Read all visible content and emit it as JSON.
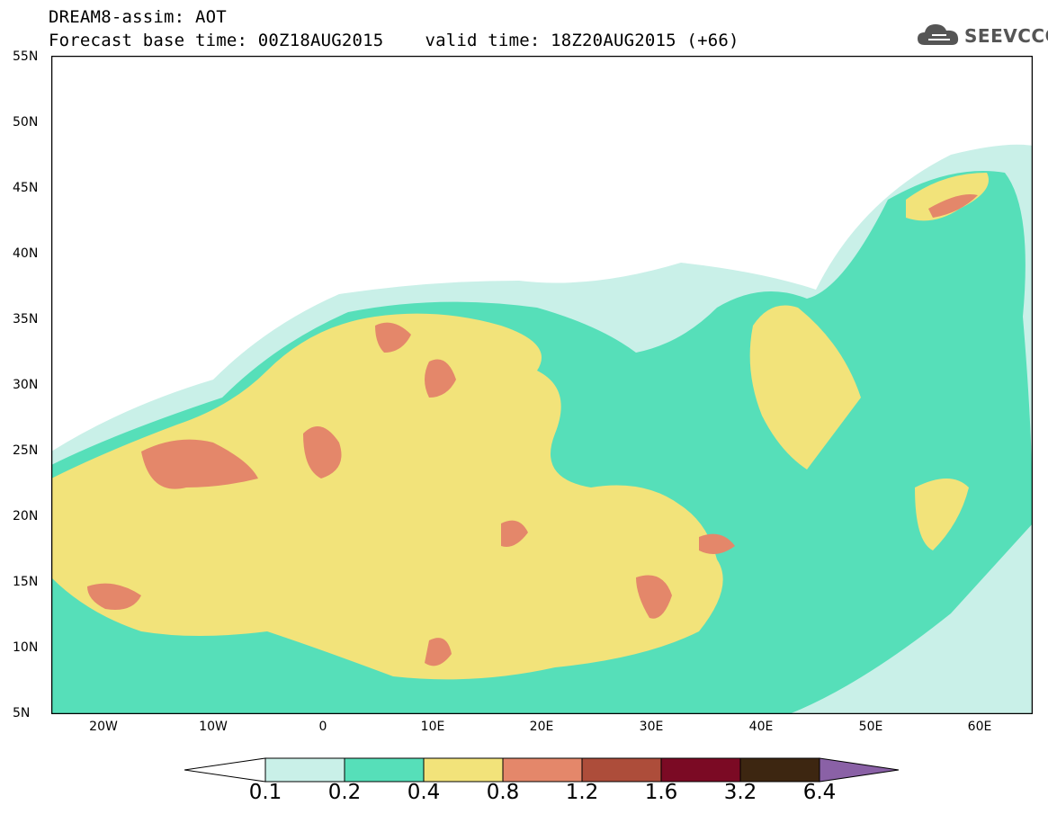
{
  "header": {
    "line1": "DREAM8-assim: AOT",
    "line2_base": "Forecast base time: 00Z18AUG2015",
    "line2_valid": "valid time: 18Z20AUG2015 (+66)",
    "logo_text": "SEEVCCC",
    "logo_icon": "cloud-logo-icon"
  },
  "map": {
    "latitudes": [
      "55N",
      "50N",
      "45N",
      "40N",
      "35N",
      "30N",
      "25N",
      "20N",
      "15N",
      "10N",
      "5N"
    ],
    "longitudes": [
      "20W",
      "10W",
      "0",
      "10E",
      "20E",
      "30E",
      "40E",
      "50E",
      "60E"
    ]
  },
  "colorbar": {
    "levels": [
      "0.1",
      "0.2",
      "0.4",
      "0.8",
      "1.2",
      "1.6",
      "3.2",
      "6.4"
    ],
    "colors": [
      "#ffffff",
      "#c9f0e8",
      "#56dfb9",
      "#f2e37a",
      "#e4876a",
      "#ad4d3a",
      "#7b0a24",
      "#3d2611",
      "#8a61a6"
    ]
  }
}
